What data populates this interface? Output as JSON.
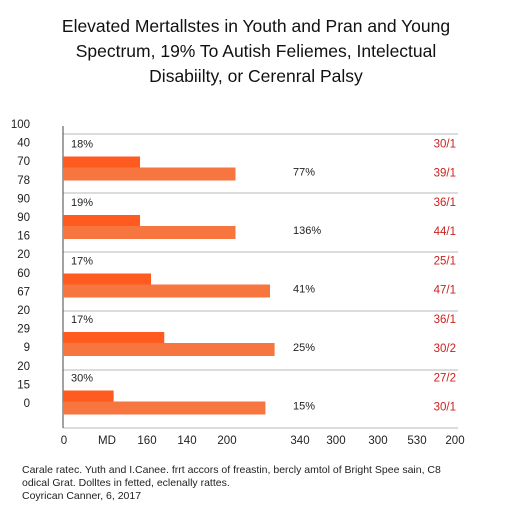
{
  "title_lines": [
    "Elevated Mertallstes in Youth and Pran and Young",
    "Spectrum, 19% To Autish Feliemes, Intelectual",
    "Disabiilty, or Cerenral Palsy"
  ],
  "footnote_lines": [
    "Carale ratec. Yuth and I.Canee. frrt accors of freastin, bercly amtol of Bright Spee sain, C8",
    "odical Grat. Dolltes in fetted, eclenally rattes.",
    "Coyrican Canner, 6, 2017"
  ],
  "chart_data": {
    "type": "bar",
    "orientation": "horizontal",
    "title": "Elevated Mertallstes in Youth and Pran and Young Spectrum, 19% To Autish Feliemes, Intelectual Disabiilty, or Cerenral Palsy",
    "xlabel": "",
    "ylabel": "",
    "x_tick_labels": [
      "0",
      "MD",
      "160",
      "140",
      "200",
      "340",
      "300",
      "300",
      "530",
      "200"
    ],
    "xlim": [
      0,
      400
    ],
    "grid": "horizontal",
    "colors": {
      "bar_short": "#ff5a1f",
      "bar_long": "#f7763f",
      "right_label": "#cc1f1a"
    },
    "y_axis_labels": [
      "100",
      "40",
      "70",
      "78",
      "90",
      "90",
      "16",
      "20",
      "60",
      "67",
      "20",
      "29",
      "9",
      "20",
      "15",
      "0"
    ],
    "groups": [
      {
        "left_label": "18%",
        "short_value": 35,
        "long_value": 75,
        "long_label": "77%",
        "right_label": "30/1"
      },
      {
        "left_label": "19%",
        "short_value": 35,
        "long_value": 75,
        "long_label": "136%",
        "right_label": "36/1"
      },
      {
        "left_label": "17%",
        "short_value": 40,
        "long_value": 90,
        "long_label": "41%",
        "right_label": "25/1"
      },
      {
        "left_label": "17%",
        "short_value": 46,
        "long_value": 92,
        "long_label": "25%",
        "right_label": "36/1"
      },
      {
        "left_label": "30%",
        "short_value": 23,
        "long_value": 88,
        "long_label": "15%",
        "right_label": "27/2"
      }
    ],
    "extra_right_labels": [
      "39/1",
      "44/1",
      "47/1",
      "30/2",
      "30/1"
    ]
  }
}
